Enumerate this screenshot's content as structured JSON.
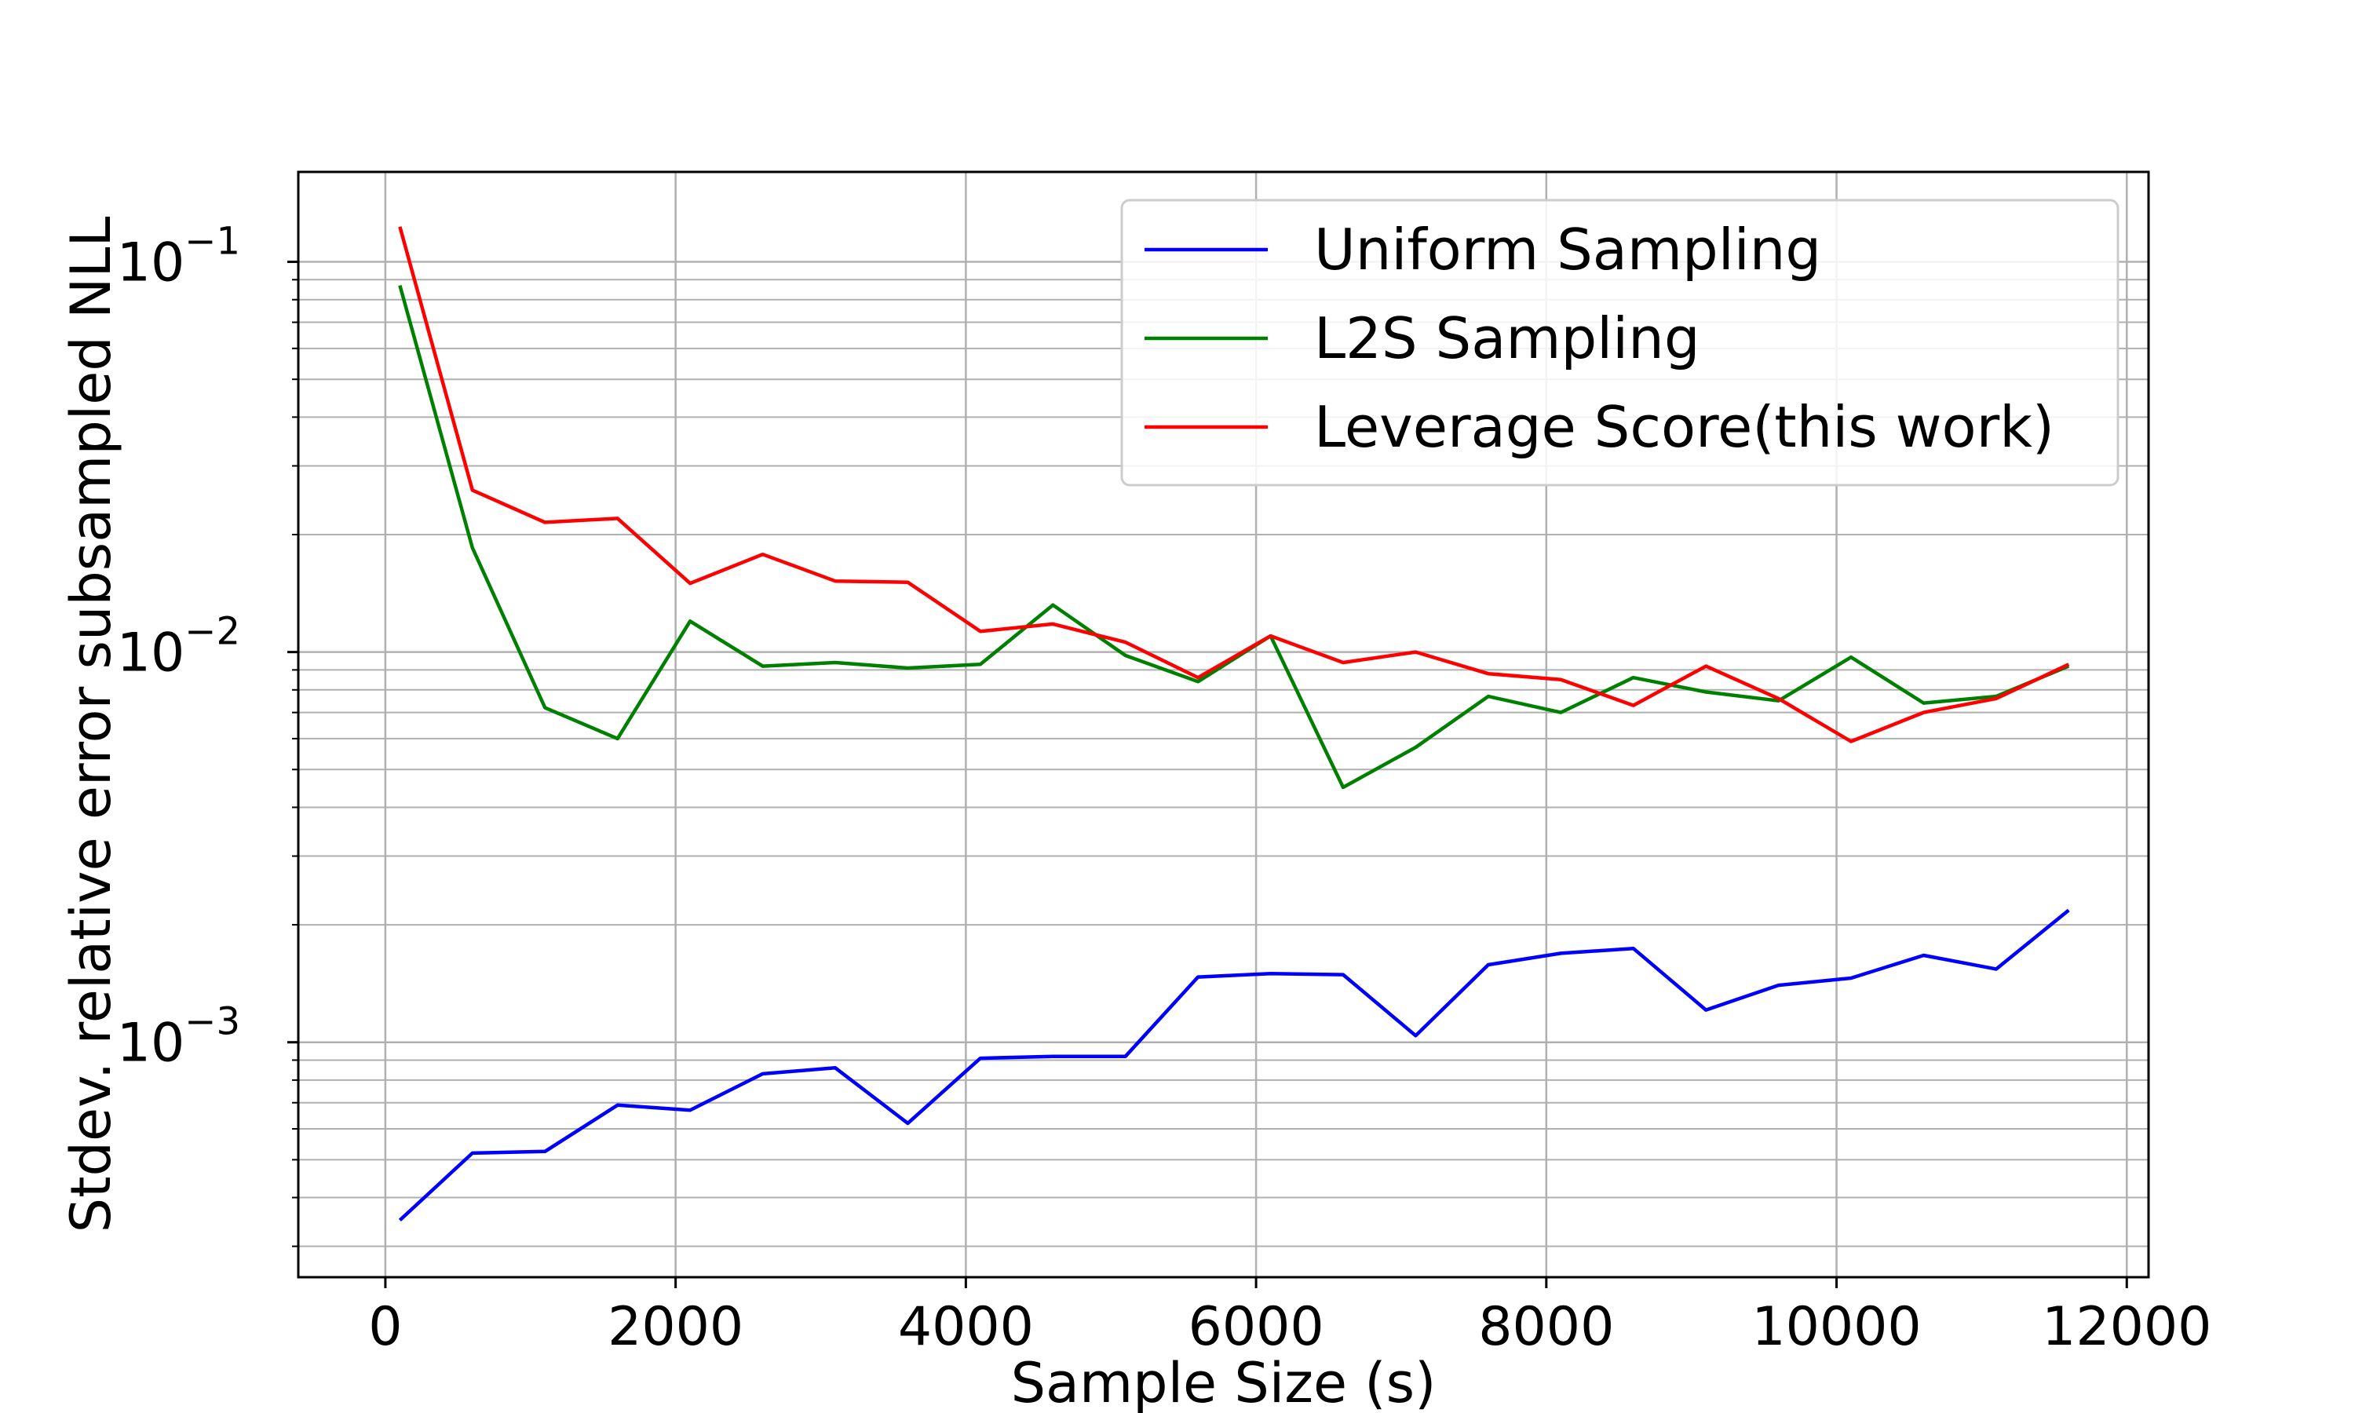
{
  "chart_data": {
    "type": "line",
    "xlabel": "Sample Size (s)",
    "ylabel": "Stdev. relative error subsampled NLL",
    "yscale": "log",
    "xlim": [
      -600,
      12150
    ],
    "ylim": [
      0.00025,
      0.17
    ],
    "xticks": [
      0,
      2000,
      4000,
      6000,
      8000,
      10000,
      12000
    ],
    "xtick_labels": [
      "0",
      "2000",
      "4000",
      "6000",
      "8000",
      "10000",
      "12000"
    ],
    "yticks": [
      {
        "base": "10",
        "exp": "−1",
        "value": 0.1
      },
      {
        "base": "10",
        "exp": "−2",
        "value": 0.01
      },
      {
        "base": "10",
        "exp": "−3",
        "value": 0.001
      }
    ],
    "grid": true,
    "legend_position": "upper-right",
    "x": [
      100,
      600,
      1100,
      1600,
      2100,
      2600,
      3100,
      3600,
      4100,
      4600,
      5100,
      5600,
      6100,
      6600,
      7100,
      7600,
      8100,
      8600,
      9100,
      9600,
      10100,
      10600,
      11100,
      11600
    ],
    "series": [
      {
        "name": "Uniform Sampling",
        "color": "#0000ff",
        "values": [
          0.00035,
          0.00052,
          0.000525,
          0.00069,
          0.00067,
          0.00083,
          0.00086,
          0.00062,
          0.00091,
          0.00092,
          0.00092,
          0.00147,
          0.0015,
          0.00149,
          0.00104,
          0.00158,
          0.00169,
          0.00174,
          0.00121,
          0.0014,
          0.00146,
          0.00167,
          0.00154,
          0.00218
        ]
      },
      {
        "name": "L2S Sampling",
        "color": "#008000",
        "values": [
          0.087,
          0.0185,
          0.0072,
          0.006,
          0.012,
          0.0092,
          0.0094,
          0.0091,
          0.0093,
          0.0132,
          0.0098,
          0.0084,
          0.011,
          0.0045,
          0.0057,
          0.0077,
          0.007,
          0.0086,
          0.0079,
          0.0075,
          0.0097,
          0.0074,
          0.0077,
          0.0092
        ]
      },
      {
        "name": "Leverage Score(this work)",
        "color": "#ff0000",
        "values": [
          0.123,
          0.026,
          0.0215,
          0.022,
          0.015,
          0.0178,
          0.0152,
          0.0151,
          0.0113,
          0.0118,
          0.0106,
          0.0086,
          0.011,
          0.0094,
          0.01,
          0.0088,
          0.0085,
          0.0073,
          0.0092,
          0.0076,
          0.0059,
          0.007,
          0.0076,
          0.0093
        ]
      }
    ]
  }
}
